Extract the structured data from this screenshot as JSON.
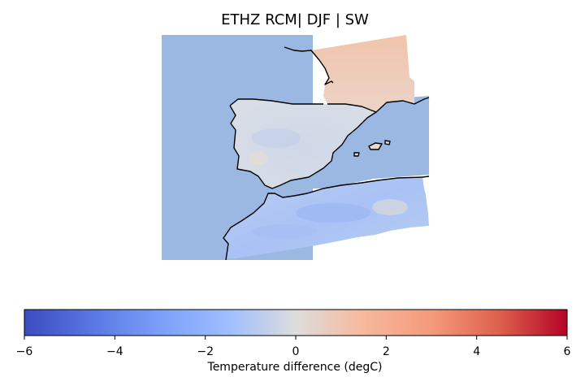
{
  "title": "ETHZ RCM| DJF | SW",
  "colorbar": {
    "label": "Temperature difference (degC)",
    "min": -6,
    "max": 6,
    "colormap": "coolwarm",
    "ticks": [
      -6,
      -4,
      -2,
      0,
      2,
      4,
      6
    ],
    "tick_labels": [
      "−6",
      "−4",
      "−2",
      "0",
      "2",
      "4",
      "6"
    ]
  },
  "colors": {
    "ocean": "#9ab8e2",
    "coastline": "#000000",
    "cool_low": "#3b4cc0",
    "neutral": "#dddddd",
    "warm_high": "#b40426"
  },
  "map": {
    "region": "Iberian Peninsula, southern France and north-west Africa",
    "regions": [
      {
        "name": "France",
        "anomaly_degC": 1.2
      },
      {
        "name": "Iberian Peninsula",
        "anomaly_degC": -0.4
      },
      {
        "name": "North Africa",
        "anomaly_degC": -1.8
      },
      {
        "name": "Balearic Islands",
        "anomaly_degC": 0.3
      }
    ]
  }
}
